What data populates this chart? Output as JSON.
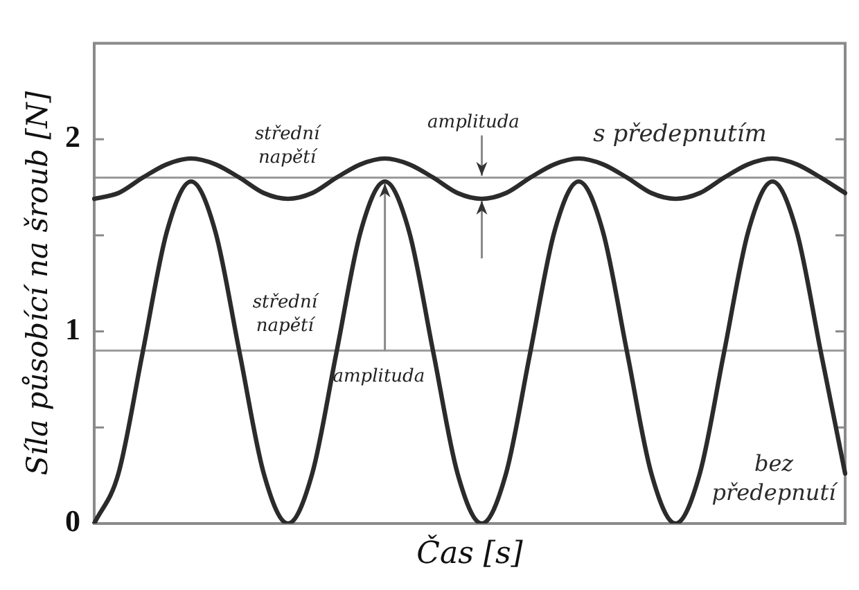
{
  "chart_data": {
    "type": "line",
    "xlabel": "Čas [s]",
    "ylabel": "Síla působící na šroub [N]",
    "categories": [
      null,
      null,
      null,
      null,
      null,
      null,
      null,
      null,
      null,
      null,
      null,
      null,
      null,
      null,
      null,
      null,
      null,
      null,
      null,
      null,
      null,
      null,
      null,
      null,
      null,
      null,
      null,
      null,
      null,
      null,
      null,
      null
    ],
    "series": [
      {
        "name": "s předepnutím",
        "color": "#2b2b2b",
        "values": [
          1.69,
          1.72,
          1.8,
          1.87,
          1.9,
          1.87,
          1.8,
          1.72,
          1.69,
          1.72,
          1.8,
          1.87,
          1.9,
          1.87,
          1.8,
          1.72,
          1.69,
          1.72,
          1.8,
          1.87,
          1.9,
          1.87,
          1.8,
          1.72,
          1.69,
          1.72,
          1.8,
          1.87,
          1.9,
          1.87,
          1.8,
          1.72
        ]
      },
      {
        "name": "bez předepnutí",
        "color": "#2b2b2b",
        "values": [
          0,
          0.26,
          0.89,
          1.52,
          1.78,
          1.52,
          0.89,
          0.26,
          0,
          0.26,
          0.89,
          1.52,
          1.78,
          1.52,
          0.89,
          0.26,
          0,
          0.26,
          0.89,
          1.52,
          1.78,
          1.52,
          0.89,
          0.26,
          0,
          0.26,
          0.89,
          1.52,
          1.78,
          1.52,
          0.89,
          0.26
        ]
      }
    ],
    "ylim": [
      0,
      2.5
    ],
    "yticks": [
      0,
      {
        "value": 0.5,
        "label": null
      },
      1,
      {
        "value": 1.5,
        "label": null
      },
      2
    ],
    "tick_labels": "y",
    "grid": false,
    "legend": false,
    "marker": "none",
    "line_style": "solid",
    "ref_lines": [
      {
        "axis": "y",
        "value": 1.8,
        "color": "#9a9a9a"
      },
      {
        "axis": "y",
        "value": 0.9,
        "color": "#9a9a9a"
      }
    ],
    "annotations": [
      "střední\nnapětí",
      "střední\nnapětí",
      "amplituda",
      "amplituda"
    ]
  }
}
